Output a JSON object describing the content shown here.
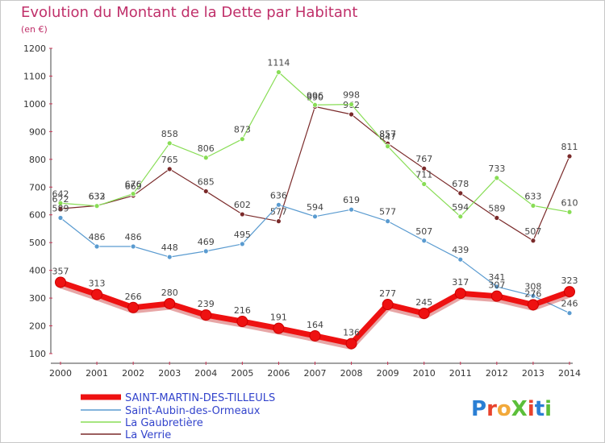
{
  "title": "Evolution du Montant de la Dette par Habitant",
  "unit": "(en €)",
  "logo": {
    "text": "ProXiti",
    "colors": [
      "#2a7fd4",
      "#e8432d",
      "#f2a93b",
      "#5cbf3a",
      "#e8432d",
      "#2a7fd4",
      "#5cbf3a"
    ]
  },
  "chart_data": {
    "type": "line",
    "x": [
      2000,
      2001,
      2002,
      2003,
      2004,
      2005,
      2006,
      2007,
      2008,
      2009,
      2010,
      2011,
      2012,
      2013,
      2014
    ],
    "ylim": [
      100,
      1200
    ],
    "yticks": [
      100,
      200,
      300,
      400,
      500,
      600,
      700,
      800,
      900,
      1000,
      1100,
      1200
    ],
    "grid": false,
    "legend_position": "bottom-left",
    "series": [
      {
        "name": "SAINT-MARTIN-DES-TILLEULS",
        "color": "#ee1111",
        "values": [
          357,
          313,
          266,
          280,
          239,
          216,
          191,
          164,
          136,
          277,
          245,
          317,
          307,
          276,
          323
        ]
      },
      {
        "name": "Saint-Aubin-des-Ormeaux",
        "color": "#5a9bd0",
        "values": [
          589,
          486,
          486,
          448,
          469,
          495,
          636,
          594,
          619,
          577,
          507,
          439,
          341,
          308,
          246
        ]
      },
      {
        "name": "La Gaubretière",
        "color": "#88dd55",
        "values": [
          642,
          632,
          676,
          858,
          806,
          873,
          1114,
          996,
          998,
          847,
          711,
          594,
          733,
          633,
          610
        ]
      },
      {
        "name": "La Verrie",
        "color": "#7a2a2a",
        "values": [
          622,
          633,
          669,
          765,
          685,
          602,
          577,
          990,
          962,
          857,
          767,
          678,
          589,
          507,
          811
        ]
      }
    ]
  }
}
